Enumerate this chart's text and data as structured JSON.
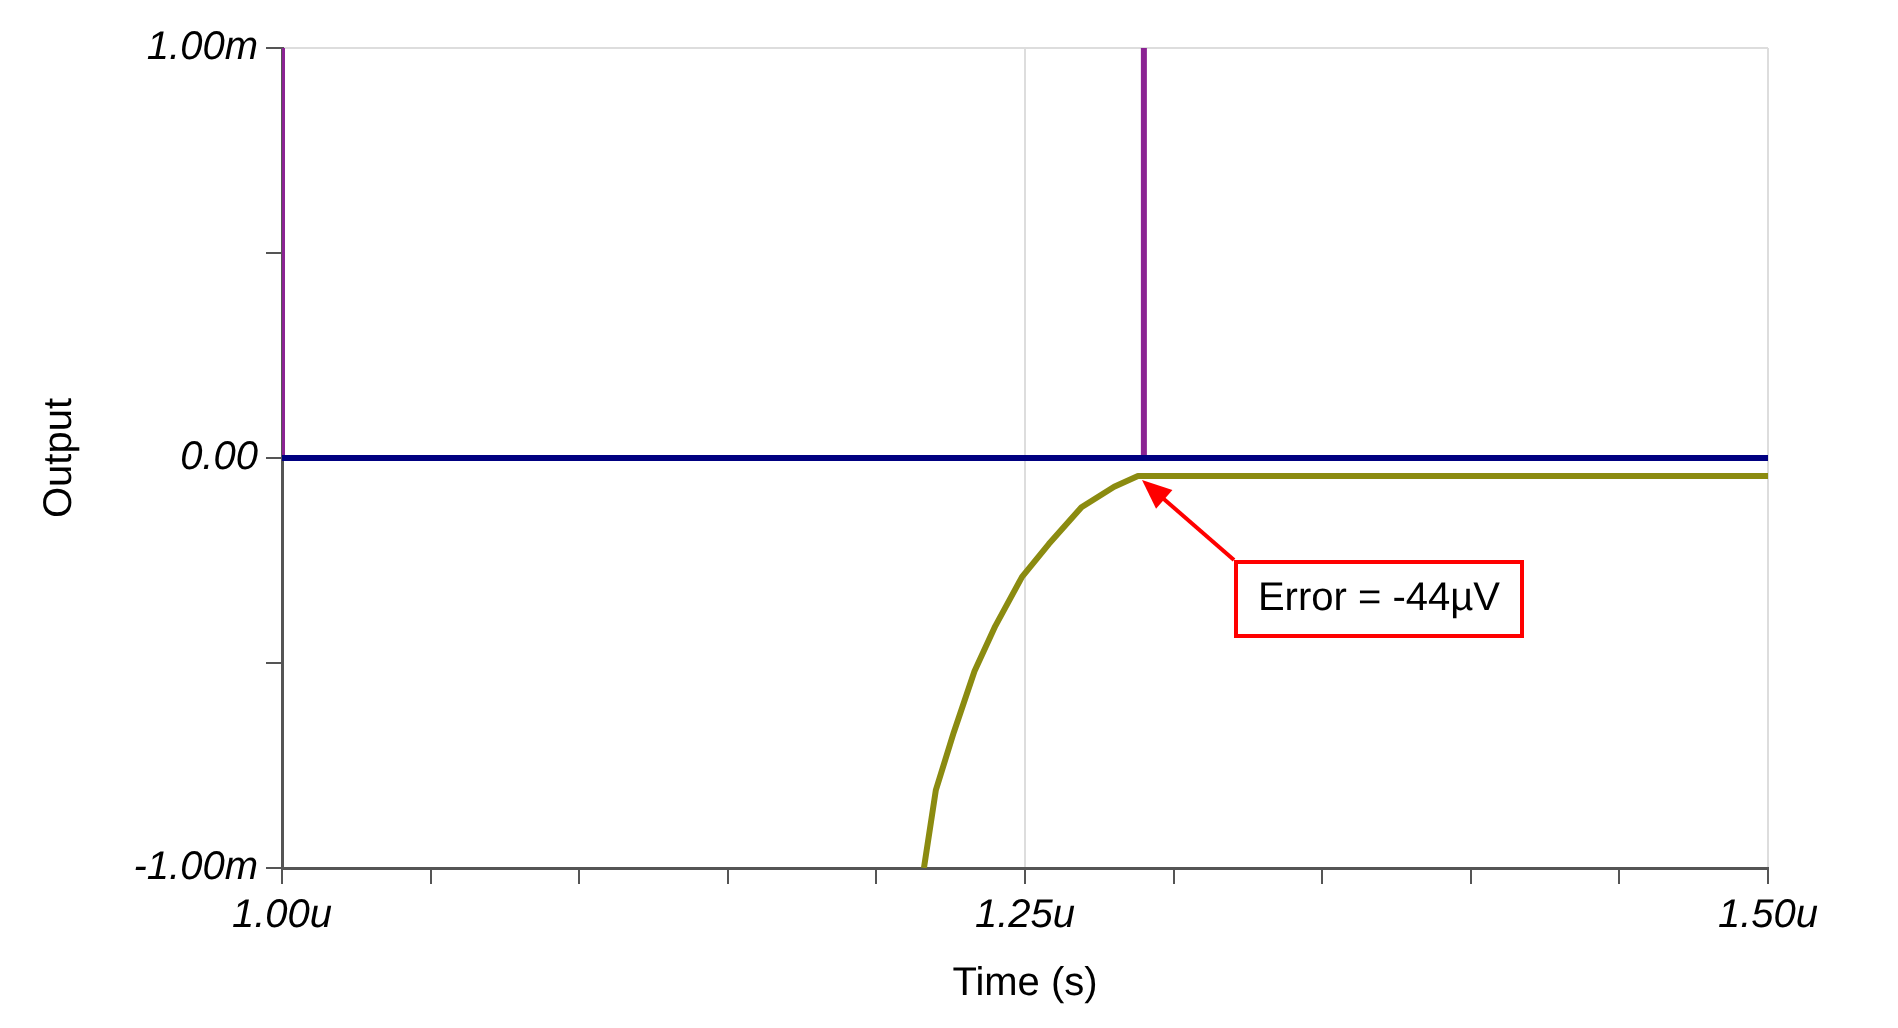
{
  "chart_data": {
    "type": "line",
    "xlabel": "Time (s)",
    "ylabel": "Output",
    "xlim": [
      1.0,
      1.5
    ],
    "ylim": [
      -1.0,
      1.0
    ],
    "xticks": [
      {
        "value": 1.0,
        "label": "1.00u"
      },
      {
        "value": 1.05,
        "label": null
      },
      {
        "value": 1.1,
        "label": null
      },
      {
        "value": 1.15,
        "label": null
      },
      {
        "value": 1.2,
        "label": null
      },
      {
        "value": 1.25,
        "label": "1.25u"
      },
      {
        "value": 1.3,
        "label": null
      },
      {
        "value": 1.35,
        "label": null
      },
      {
        "value": 1.4,
        "label": null
      },
      {
        "value": 1.45,
        "label": null
      },
      {
        "value": 1.5,
        "label": "1.50u"
      }
    ],
    "yticks": [
      {
        "value": -1.0,
        "label": "-1.00m"
      },
      {
        "value": -0.5,
        "label": null
      },
      {
        "value": 0,
        "label": "0.00"
      },
      {
        "value": 0.5,
        "label": null
      },
      {
        "value": 1.0,
        "label": "1.00m"
      }
    ],
    "grid": true,
    "legend": false,
    "marker": "none",
    "line_style": "solid",
    "series": [
      {
        "color": "#000080",
        "x": [
          1.0,
          1.5
        ],
        "values": [
          0,
          0
        ]
      },
      {
        "color": "#8b2393",
        "x": [
          1.0,
          1.0,
          1.29,
          1.29,
          1.29,
          1.5
        ],
        "values": [
          1.0,
          0,
          0,
          1.0,
          0,
          0
        ]
      },
      {
        "color": "#8b8b10",
        "x": [
          1.216,
          1.22,
          1.226,
          1.233,
          1.24,
          1.249,
          1.258,
          1.269,
          1.28,
          1.288,
          1.5
        ],
        "values": [
          -1.0,
          -0.81,
          -0.67,
          -0.52,
          -0.41,
          -0.29,
          -0.21,
          -0.12,
          -0.07,
          -0.044,
          -0.044
        ]
      }
    ],
    "annotations": [
      "Error = -44µV"
    ]
  }
}
